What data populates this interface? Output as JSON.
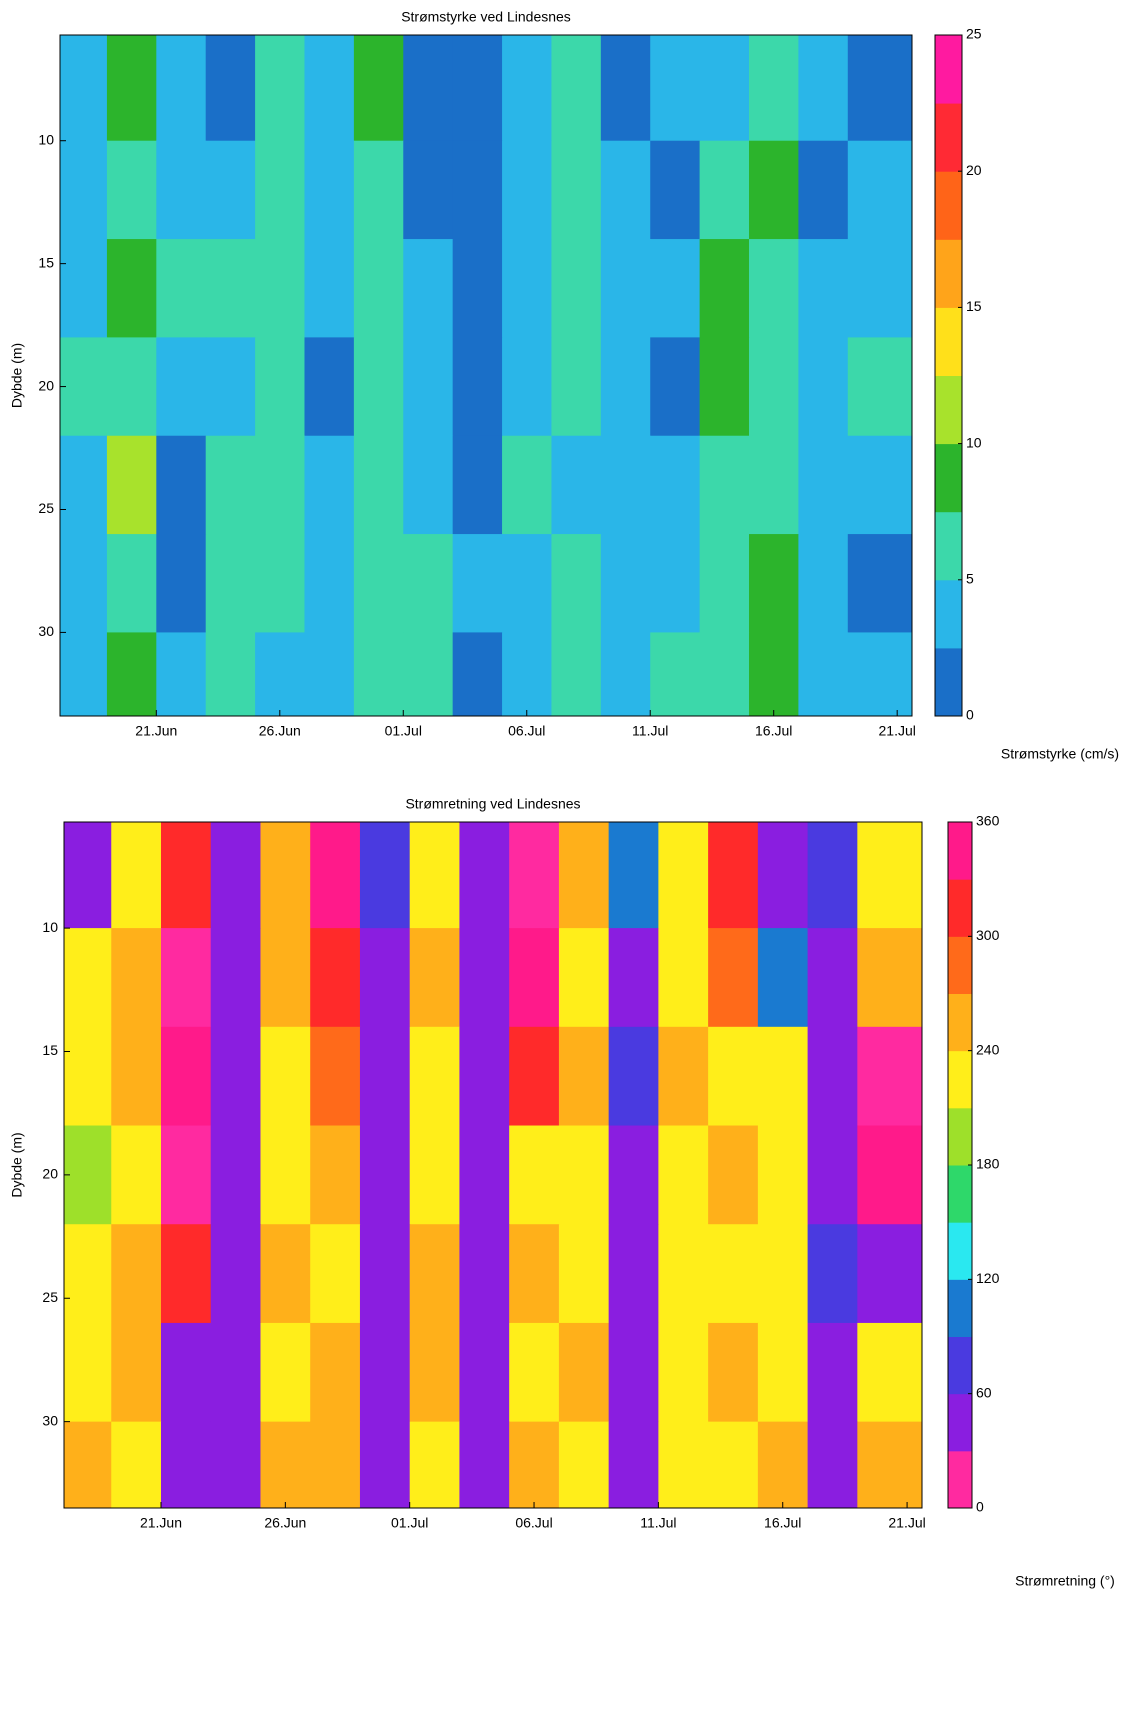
{
  "chart_data": [
    {
      "type": "heatmap",
      "title": "Strømstyrke ved Lindesnes",
      "ylabel": "Dybde (m)",
      "colorbar_label": "Strømstyrke (cm/s)",
      "x": [
        18,
        20,
        22,
        24,
        26,
        28,
        30,
        32,
        34,
        36,
        38,
        40,
        42,
        44,
        46,
        48,
        50
      ],
      "y": [
        8,
        12,
        16,
        20,
        24,
        28,
        32
      ],
      "z": [
        [
          4,
          9,
          3,
          2,
          5,
          3,
          8,
          2,
          1,
          3,
          6,
          2,
          3,
          4,
          7,
          3,
          2
        ],
        [
          3,
          6,
          4,
          3,
          7,
          4,
          5,
          2,
          2,
          4,
          5,
          3,
          2,
          5,
          8,
          2,
          3
        ],
        [
          4,
          8,
          5,
          6,
          5,
          3,
          6,
          3,
          2,
          3,
          6,
          4,
          3,
          9,
          7,
          3,
          4
        ],
        [
          5,
          7,
          3,
          4,
          7,
          2,
          5,
          3,
          1,
          4,
          5,
          3,
          2,
          8,
          6,
          4,
          5
        ],
        [
          3,
          10,
          2,
          5,
          6,
          3,
          7,
          4,
          2,
          5,
          4,
          3,
          3,
          6,
          7,
          3,
          3
        ],
        [
          4,
          7,
          2,
          6,
          5,
          4,
          6,
          5,
          3,
          4,
          5,
          4,
          4,
          7,
          9,
          4,
          2
        ],
        [
          3,
          9,
          3,
          7,
          4,
          3,
          5,
          6,
          2,
          4,
          6,
          3,
          5,
          5,
          8,
          3,
          3
        ]
      ],
      "xlim": [
        17.1,
        51.6
      ],
      "ylim": [
        5.7,
        33.4
      ],
      "y_reversed": true,
      "xticks": [
        {
          "value": 21,
          "label": "21.Jun"
        },
        {
          "value": 26,
          "label": "26.Jun"
        },
        {
          "value": 31,
          "label": "01.Jul"
        },
        {
          "value": 36,
          "label": "06.Jul"
        },
        {
          "value": 41,
          "label": "11.Jul"
        },
        {
          "value": 46,
          "label": "16.Jul"
        },
        {
          "value": 51,
          "label": "21.Jul"
        }
      ],
      "yticks": [
        10,
        15,
        20,
        25,
        30
      ],
      "levels": [
        0,
        2.5,
        5,
        7.5,
        10,
        12.5,
        15,
        17.5,
        20,
        22.5,
        25
      ],
      "colors": [
        "#1a6fc8",
        "#2ab6e8",
        "#3cd8aa",
        "#2cb42c",
        "#a8e22c",
        "#ffe01a",
        "#ffa41a",
        "#ff6418",
        "#ff2a34",
        "#ff1aa0"
      ],
      "colorbar_ticks": [
        0,
        5,
        10,
        15,
        20,
        25
      ]
    },
    {
      "type": "heatmap",
      "title": "Strømretning ved Lindesnes",
      "ylabel": "Dybde (m)",
      "colorbar_label": "Strømretning (°)",
      "x": [
        18,
        20,
        22,
        24,
        26,
        28,
        30,
        32,
        34,
        36,
        38,
        40,
        42,
        44,
        46,
        48,
        50
      ],
      "y": [
        8,
        12,
        16,
        20,
        24,
        28,
        32
      ],
      "z": [
        [
          40,
          220,
          300,
          45,
          240,
          330,
          60,
          230,
          45,
          20,
          250,
          90,
          210,
          300,
          45,
          60,
          230
        ],
        [
          230,
          250,
          20,
          40,
          260,
          300,
          45,
          240,
          50,
          330,
          230,
          45,
          230,
          270,
          90,
          40,
          250
        ],
        [
          220,
          240,
          330,
          45,
          230,
          270,
          50,
          220,
          40,
          300,
          240,
          60,
          250,
          230,
          220,
          45,
          20
        ],
        [
          200,
          230,
          20,
          40,
          220,
          240,
          45,
          230,
          50,
          230,
          220,
          45,
          230,
          240,
          210,
          40,
          330
        ],
        [
          230,
          250,
          300,
          40,
          250,
          230,
          45,
          240,
          45,
          240,
          230,
          50,
          220,
          230,
          230,
          60,
          45
        ],
        [
          220,
          240,
          40,
          45,
          230,
          240,
          40,
          250,
          50,
          230,
          240,
          45,
          210,
          240,
          220,
          45,
          230
        ],
        [
          240,
          230,
          40,
          40,
          240,
          250,
          45,
          230,
          45,
          240,
          230,
          40,
          230,
          230,
          240,
          50,
          250
        ]
      ],
      "xlim": [
        17.1,
        51.6
      ],
      "ylim": [
        5.7,
        33.5
      ],
      "y_reversed": true,
      "xticks": [
        {
          "value": 21,
          "label": "21.Jun"
        },
        {
          "value": 26,
          "label": "26.Jun"
        },
        {
          "value": 31,
          "label": "01.Jul"
        },
        {
          "value": 36,
          "label": "06.Jul"
        },
        {
          "value": 41,
          "label": "11.Jul"
        },
        {
          "value": 46,
          "label": "16.Jul"
        },
        {
          "value": 51,
          "label": "21.Jul"
        }
      ],
      "yticks": [
        10,
        15,
        20,
        25,
        30
      ],
      "levels": [
        0,
        30,
        60,
        90,
        120,
        150,
        180,
        210,
        240,
        270,
        300,
        330,
        360
      ],
      "colors": [
        "#ff2aa0",
        "#8a1ee0",
        "#4a3ae0",
        "#1a7ad0",
        "#2ae8f0",
        "#2ed86a",
        "#9ee02a",
        "#ffee1a",
        "#ffb01a",
        "#ff6a1a",
        "#ff2a2a",
        "#ff1a8a"
      ],
      "colorbar_ticks": [
        0,
        60,
        120,
        180,
        240,
        300,
        360
      ]
    }
  ]
}
